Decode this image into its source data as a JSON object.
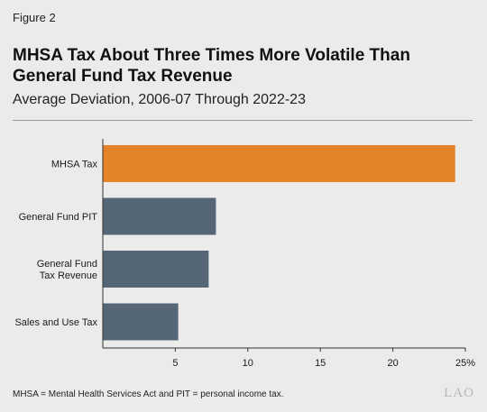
{
  "figure_label": "Figure 2",
  "footnote": "MHSA = Mental Health Services Act and PIT = personal income tax.",
  "logo": "LAO",
  "colors": {
    "highlight": "#e4832a",
    "bar": "#556677",
    "axis": "#333333",
    "background": "#ebebea"
  },
  "chart_data": {
    "type": "bar",
    "orientation": "horizontal",
    "title": "MHSA Tax About Three Times More Volatile Than General Fund Tax Revenue",
    "subtitle": "Average Deviation, 2006-07 Through 2022-23",
    "categories": [
      [
        "MHSA Tax"
      ],
      [
        "General Fund PIT"
      ],
      [
        "General Fund",
        "Tax Revenue"
      ],
      [
        "Sales and Use Tax"
      ]
    ],
    "values": [
      24.3,
      7.8,
      7.3,
      5.2
    ],
    "highlight_index": 0,
    "xlim": [
      0,
      25
    ],
    "xticks": [
      5,
      10,
      15,
      20,
      25
    ],
    "xtick_labels": [
      "5",
      "10",
      "15",
      "20",
      "25%"
    ],
    "xlabel": "",
    "ylabel": "",
    "grid": false,
    "legend": "none"
  }
}
